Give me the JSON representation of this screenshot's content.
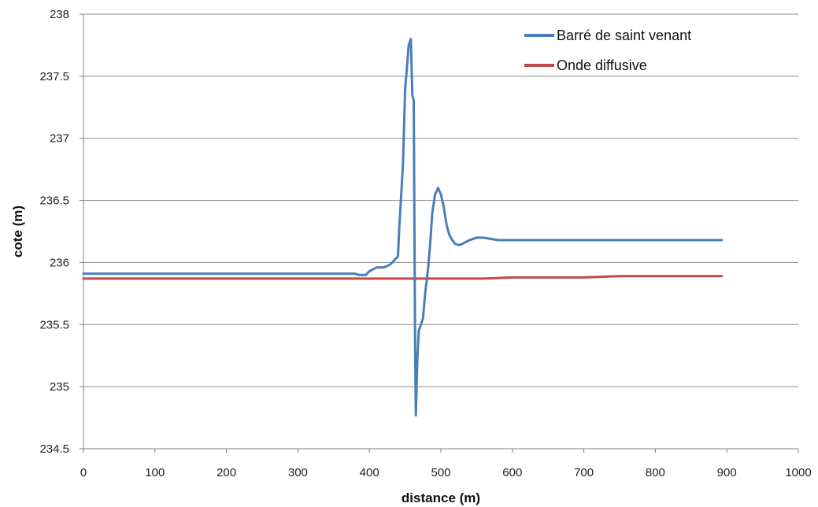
{
  "chart_data": {
    "type": "line",
    "title": "",
    "xlabel": "distance (m)",
    "ylabel": "cote (m)",
    "xlim": [
      0,
      1000
    ],
    "ylim": [
      234.5,
      238
    ],
    "x_ticks": [
      "0",
      "100",
      "200",
      "300",
      "400",
      "500",
      "600",
      "700",
      "800",
      "900",
      "1000"
    ],
    "y_ticks": [
      "234.5",
      "235",
      "235.5",
      "236",
      "236.5",
      "237",
      "237.5",
      "238"
    ],
    "grid": "horizontal",
    "legend_position": "top-right",
    "series": [
      {
        "name": "Barré de saint venant",
        "color": "#4a7ebb",
        "x": [
          0,
          100,
          200,
          300,
          380,
          385,
          395,
          400,
          410,
          420,
          428,
          432,
          435,
          440,
          442,
          445,
          447,
          450,
          453,
          455,
          458,
          460,
          462,
          464,
          465,
          467,
          469,
          472,
          475,
          478,
          482,
          485,
          488,
          492,
          496,
          500,
          504,
          508,
          512,
          516,
          520,
          525,
          530,
          540,
          550,
          560,
          570,
          580,
          600,
          620,
          640,
          700,
          800,
          893
        ],
        "y": [
          235.91,
          235.91,
          235.91,
          235.91,
          235.91,
          235.9,
          235.9,
          235.93,
          235.96,
          235.96,
          235.98,
          236.0,
          236.02,
          236.05,
          236.3,
          236.6,
          236.8,
          237.4,
          237.6,
          237.75,
          237.8,
          237.35,
          237.3,
          235.3,
          234.77,
          235.2,
          235.45,
          235.5,
          235.55,
          235.75,
          235.95,
          236.15,
          236.4,
          236.55,
          236.6,
          236.55,
          236.45,
          236.3,
          236.22,
          236.18,
          236.15,
          236.14,
          236.15,
          236.18,
          236.2,
          236.2,
          236.19,
          236.18,
          236.18,
          236.18,
          236.18,
          236.18,
          236.18,
          236.18
        ]
      },
      {
        "name": "Onde diffusive",
        "color": "#be4b48",
        "x": [
          0,
          100,
          200,
          300,
          400,
          500,
          560,
          600,
          650,
          700,
          750,
          800,
          850,
          893
        ],
        "y": [
          235.87,
          235.87,
          235.87,
          235.87,
          235.87,
          235.87,
          235.87,
          235.88,
          235.88,
          235.88,
          235.89,
          235.89,
          235.89,
          235.89
        ]
      }
    ]
  }
}
